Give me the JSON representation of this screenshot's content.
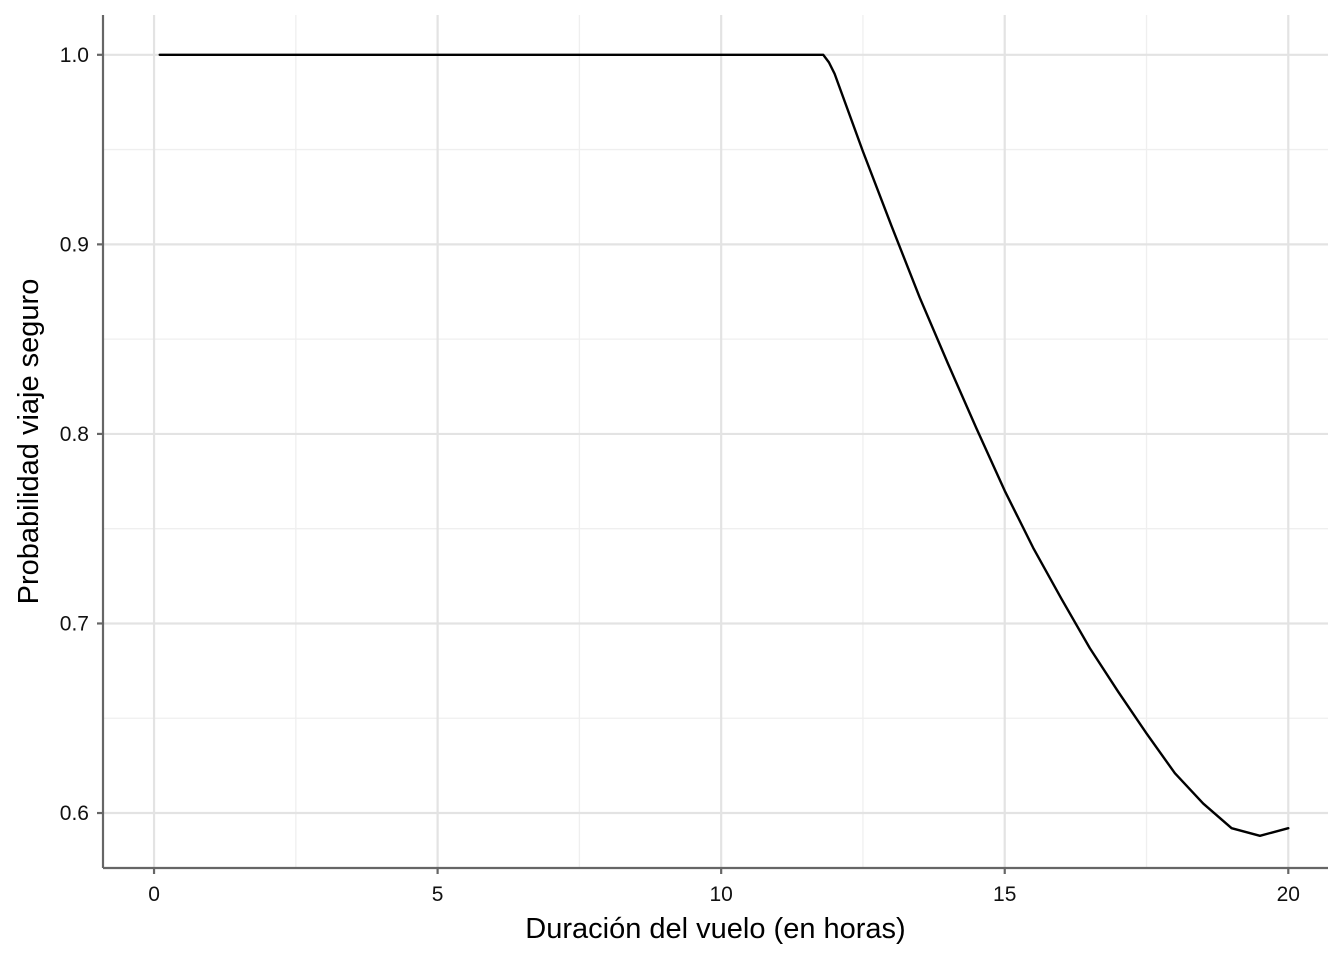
{
  "chart_data": {
    "type": "line",
    "title": "",
    "xlabel": "Duración del vuelo (en horas)",
    "ylabel": "Probabilidad viaje seguro",
    "xlim": [
      -0.9,
      20.7
    ],
    "ylim": [
      0.571,
      1.021
    ],
    "x_ticks": [
      0,
      5,
      10,
      15,
      20
    ],
    "x_tick_labels": [
      "0",
      "5",
      "10",
      "15",
      "20"
    ],
    "x_minor_ticks": [
      2.5,
      7.5,
      12.5,
      17.5
    ],
    "y_ticks": [
      0.6,
      0.7,
      0.8,
      0.9,
      1.0
    ],
    "y_tick_labels": [
      "0.6",
      "0.7",
      "0.8",
      "0.9",
      "1.0"
    ],
    "y_minor_ticks": [
      0.65,
      0.75,
      0.85,
      0.95
    ],
    "grid": true,
    "legend": "none",
    "line_color": "#000000",
    "series": [
      {
        "x": [
          0.1,
          2,
          4,
          6,
          8,
          10,
          11.8,
          11.9,
          12,
          12.5,
          13,
          13.5,
          14,
          14.5,
          15,
          15.5,
          16,
          16.5,
          17,
          17.5,
          18,
          18.5,
          19,
          19.5,
          20
        ],
        "values": [
          1.0,
          1.0,
          1.0,
          1.0,
          1.0,
          1.0,
          1.0,
          0.996,
          0.99,
          0.949,
          0.91,
          0.872,
          0.837,
          0.803,
          0.77,
          0.74,
          0.713,
          0.687,
          0.664,
          0.642,
          0.621,
          0.605,
          0.592,
          0.588,
          0.592
        ]
      }
    ]
  }
}
